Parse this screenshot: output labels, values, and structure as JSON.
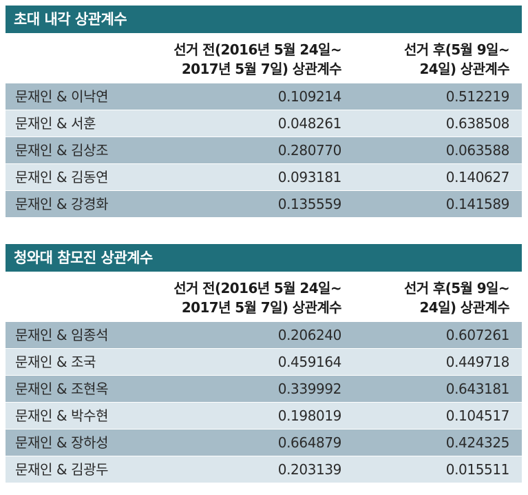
{
  "colors": {
    "title_bar": "#1f6f7b",
    "row_dark": "#a6bcc8",
    "row_light": "#dbe6ec"
  },
  "tables": [
    {
      "title": "초대 내각 상관계수",
      "header_before_line1": "선거 전(2016년 5월 24일~",
      "header_before_line2": "2017년 5월 7일) 상관계수",
      "header_after_line1": "선거 후(5월 9일~",
      "header_after_line2": "24일) 상관계수",
      "rows": [
        {
          "pair": "문재인 & 이낙연",
          "before": "0.109214",
          "after": "0.512219"
        },
        {
          "pair": "문재인 & 서훈",
          "before": "0.048261",
          "after": "0.638508"
        },
        {
          "pair": "문재인 & 김상조",
          "before": "0.280770",
          "after": "0.063588"
        },
        {
          "pair": "문재인 & 김동연",
          "before": "0.093181",
          "after": "0.140627"
        },
        {
          "pair": "문재인 & 강경화",
          "before": "0.135559",
          "after": "0.141589"
        }
      ]
    },
    {
      "title": "청와대 참모진 상관계수",
      "header_before_line1": "선거 전(2016년 5월 24일~",
      "header_before_line2": "2017년 5월 7일) 상관계수",
      "header_after_line1": "선거 후(5월 9일~",
      "header_after_line2": "24일) 상관계수",
      "rows": [
        {
          "pair": "문재인 & 임종석",
          "before": "0.206240",
          "after": "0.607261"
        },
        {
          "pair": "문재인 & 조국",
          "before": "0.459164",
          "after": "0.449718"
        },
        {
          "pair": "문재인 & 조현옥",
          "before": "0.339992",
          "after": "0.643181"
        },
        {
          "pair": "문재인 & 박수현",
          "before": "0.198019",
          "after": "0.104517"
        },
        {
          "pair": "문재인 & 장하성",
          "before": "0.664879",
          "after": "0.424325"
        },
        {
          "pair": "문재인 & 김광두",
          "before": "0.203139",
          "after": "0.015511"
        }
      ]
    }
  ]
}
